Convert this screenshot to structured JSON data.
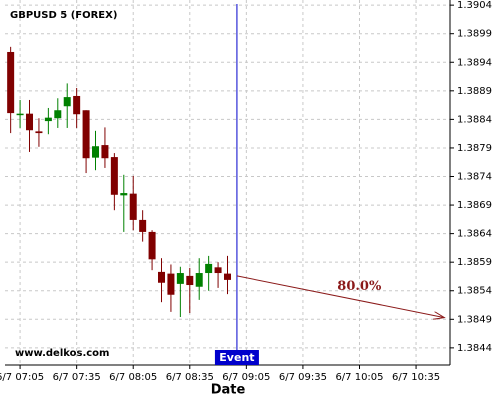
{
  "chart_data": {
    "type": "candlestick",
    "title": "GBPUSD 5 (FOREX)",
    "watermark": "www.delkos.com",
    "x_label": "Date",
    "x": [
      "6/7 07:00",
      "6/7 07:05",
      "6/7 07:10",
      "6/7 07:15",
      "6/7 07:20",
      "6/7 07:25",
      "6/7 07:30",
      "6/7 07:35",
      "6/7 07:40",
      "6/7 07:45",
      "6/7 07:50",
      "6/7 07:55",
      "6/7 08:00",
      "6/7 08:05",
      "6/7 08:10",
      "6/7 08:15",
      "6/7 08:20",
      "6/7 08:25",
      "6/7 08:30",
      "6/7 08:35",
      "6/7 08:40",
      "6/7 08:45",
      "6/7 08:50",
      "6/7 08:55"
    ],
    "open": [
      1.38958,
      1.3885,
      1.3885,
      1.38819,
      1.38837,
      1.38842,
      1.38863,
      1.38881,
      1.38856,
      1.38773,
      1.38795,
      1.38774,
      1.38707,
      1.3871,
      1.38664,
      1.38643,
      1.38573,
      1.3857,
      1.38552,
      1.38566,
      1.38547,
      1.38571,
      1.38581,
      1.3857
    ],
    "high": [
      1.38967,
      1.38874,
      1.38874,
      1.38842,
      1.3886,
      1.38877,
      1.38903,
      1.38895,
      1.38856,
      1.3882,
      1.38826,
      1.38781,
      1.38743,
      1.38741,
      1.38681,
      1.38646,
      1.38597,
      1.38586,
      1.38582,
      1.3858,
      1.38597,
      1.38601,
      1.3859,
      1.38601
    ],
    "low": [
      1.38816,
      1.38825,
      1.38783,
      1.38792,
      1.38814,
      1.38825,
      1.38825,
      1.38825,
      1.38746,
      1.38751,
      1.38755,
      1.38681,
      1.38643,
      1.38646,
      1.38626,
      1.38576,
      1.3852,
      1.38503,
      1.38494,
      1.38501,
      1.38524,
      1.3854,
      1.38545,
      1.38534
    ],
    "close": [
      1.38851,
      1.3885,
      1.38821,
      1.38816,
      1.38843,
      1.38856,
      1.38879,
      1.38849,
      1.38772,
      1.38793,
      1.38772,
      1.38708,
      1.38711,
      1.38664,
      1.38643,
      1.38595,
      1.38554,
      1.38533,
      1.38571,
      1.3855,
      1.38571,
      1.38587,
      1.38571,
      1.38559
    ],
    "up_color": "#008000",
    "down_color": "#800000",
    "xlim": [
      "6/7 06:57",
      "6/7 10:53"
    ],
    "xticks": [
      "6/7 07:05",
      "6/7 07:35",
      "6/7 08:05",
      "6/7 08:35",
      "6/7 09:05",
      "6/7 09:35",
      "6/7 10:05",
      "6/7 10:35"
    ],
    "ylim": [
      1.3841,
      1.39049
    ],
    "yticks": [
      1.3844,
      1.3849,
      1.3854,
      1.3859,
      1.3864,
      1.3869,
      1.3874,
      1.3879,
      1.3884,
      1.3889,
      1.3894,
      1.3899,
      1.3904
    ],
    "grid": true,
    "event": {
      "x": "6/7 09:00",
      "label": "Event",
      "color": "#0000cc"
    },
    "arrow": {
      "start": {
        "x": "6/7 09:00",
        "y": 1.38566
      },
      "end": {
        "x": "6/7 10:50",
        "y": 1.38493
      },
      "label": "80.0%",
      "color": "#8b1a1a"
    }
  }
}
